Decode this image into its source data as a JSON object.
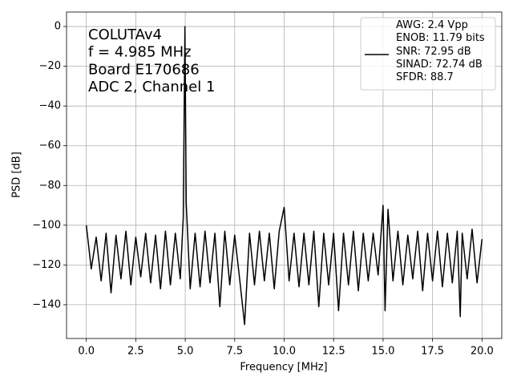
{
  "chart_data": {
    "type": "line",
    "x_label": "Frequency [MHz]",
    "y_label": "PSD [dB]",
    "annotation": [
      "COLUTAv4",
      "f = 4.985 MHz",
      "Board E170686",
      "ADC 2, Channel 1"
    ],
    "x": [
      0,
      0.25,
      0.5,
      0.75,
      1.0,
      1.25,
      1.5,
      1.75,
      2.0,
      2.25,
      2.5,
      2.75,
      3.0,
      3.25,
      3.5,
      3.75,
      4.0,
      4.25,
      4.5,
      4.75,
      4.9,
      4.985,
      5.05,
      5.25,
      5.5,
      5.75,
      6.0,
      6.25,
      6.5,
      6.75,
      7.0,
      7.25,
      7.5,
      7.75,
      8.0,
      8.25,
      8.5,
      8.75,
      9.0,
      9.25,
      9.5,
      9.75,
      10.0,
      10.25,
      10.5,
      10.75,
      11.0,
      11.25,
      11.5,
      11.75,
      12.0,
      12.25,
      12.5,
      12.75,
      13.0,
      13.25,
      13.5,
      13.75,
      14.0,
      14.25,
      14.5,
      14.75,
      15.0,
      15.1,
      15.25,
      15.5,
      15.75,
      16.0,
      16.25,
      16.5,
      16.75,
      17.0,
      17.25,
      17.5,
      17.75,
      18.0,
      18.25,
      18.5,
      18.75,
      18.9,
      19.0,
      19.25,
      19.5,
      19.75,
      20.0
    ],
    "series": [
      {
        "name": "AWG: 2.4 Vpp\nENOB: 11.79 bits\nSNR: 72.95 dB\nSINAD: 72.74 dB\nSFDR: 88.7",
        "color": "#000000",
        "values": [
          -100,
          -122,
          -106,
          -128,
          -104,
          -134,
          -105,
          -127,
          -103,
          -130,
          -106,
          -126,
          -104,
          -129,
          -105,
          -132,
          -103,
          -130,
          -104,
          -127,
          -96,
          0,
          -89,
          -132,
          -104,
          -131,
          -103,
          -129,
          -104,
          -141,
          -103,
          -130,
          -105,
          -127,
          -150,
          -104,
          -130,
          -103,
          -128,
          -104,
          -132,
          -103,
          -91,
          -128,
          -104,
          -131,
          -104,
          -130,
          -103,
          -141,
          -104,
          -130,
          -104,
          -143,
          -104,
          -130,
          -103,
          -133,
          -104,
          -128,
          -104,
          -125,
          -90,
          -143,
          -92,
          -128,
          -103,
          -130,
          -105,
          -127,
          -103,
          -133,
          -104,
          -128,
          -103,
          -131,
          -104,
          -129,
          -103,
          -146,
          -104,
          -127,
          -102,
          -129,
          -107
        ]
      }
    ],
    "xlim": [
      -1.0,
      21.0
    ],
    "ylim": [
      -157,
      7.3
    ],
    "xticks": [
      {
        "value": 0,
        "label": "0.0"
      },
      {
        "value": 2.5,
        "label": "2.5"
      },
      {
        "value": 5,
        "label": "5.0"
      },
      {
        "value": 7.5,
        "label": "7.5"
      },
      {
        "value": 10,
        "label": "10.0"
      },
      {
        "value": 12.5,
        "label": "12.5"
      },
      {
        "value": 15,
        "label": "15.0"
      },
      {
        "value": 17.5,
        "label": "17.5"
      },
      {
        "value": 20,
        "label": "20.0"
      }
    ],
    "yticks": [
      0,
      {
        "value": -20,
        "label": "−20"
      },
      {
        "value": -40,
        "label": "−40"
      },
      {
        "value": -60,
        "label": "−60"
      },
      {
        "value": -80,
        "label": "−80"
      },
      {
        "value": -100,
        "label": "−100"
      },
      {
        "value": -120,
        "label": "−120"
      },
      {
        "value": -140,
        "label": "−140"
      }
    ],
    "grid": true,
    "legend": "upper right"
  }
}
